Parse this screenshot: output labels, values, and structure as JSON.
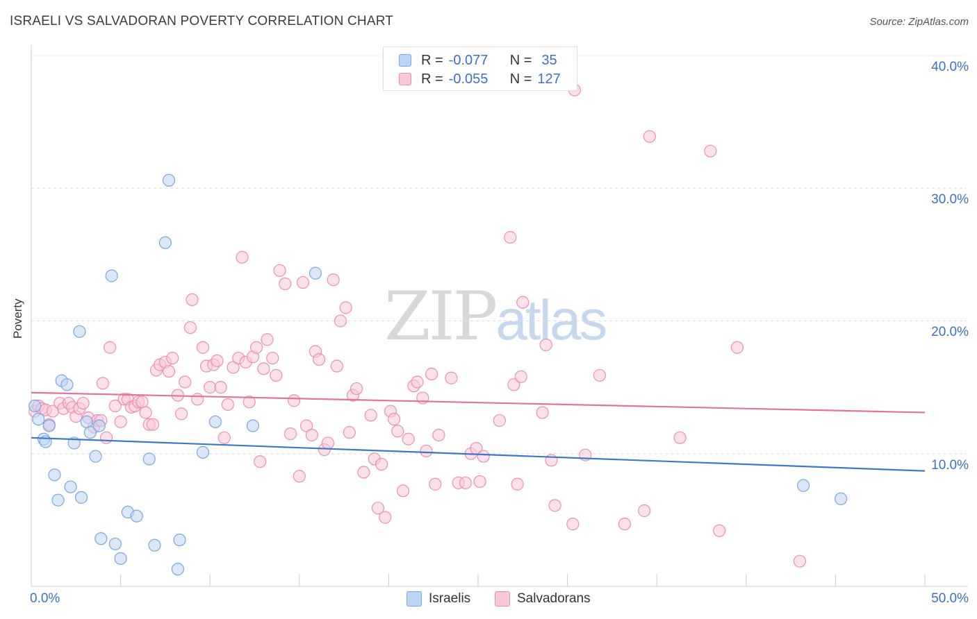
{
  "title": "ISRAELI VS SALVADORAN POVERTY CORRELATION CHART",
  "source": "Source: ZipAtlas.com",
  "watermark": {
    "part1": "ZIP",
    "part2": "atlas"
  },
  "legend_top": {
    "rows": [
      {
        "r_label": "R =",
        "r_value": "-0.077",
        "n_label": "N =",
        "n_value": "35"
      },
      {
        "r_label": "R =",
        "r_value": "-0.055",
        "n_label": "N =",
        "n_value": "127"
      }
    ]
  },
  "colors": {
    "israelis_fill": "#bcd5f5",
    "israelis_stroke": "#7aa6e0",
    "israelis_line": "#3b78c9",
    "salvadorans_fill": "#f9c8d8",
    "salvadorans_stroke": "#eb8fb0",
    "salvadorans_line": "#e5729a",
    "grid": "#dcdcdc",
    "tick_text": "#3d6fcc"
  },
  "chart_data": {
    "type": "scatter",
    "title": "ISRAELI VS SALVADORAN POVERTY CORRELATION CHART",
    "xlabel": "",
    "ylabel": "Poverty",
    "xlim": [
      0,
      50
    ],
    "ylim": [
      0,
      40
    ],
    "x_tick_labels": [
      "0.0%",
      "50.0%"
    ],
    "y_ticks": [
      10,
      20,
      30,
      40
    ],
    "y_tick_labels": [
      "10.0%",
      "20.0%",
      "30.0%",
      "40.0%"
    ],
    "grid": true,
    "legend": [
      "Israelis",
      "Salvadorans"
    ],
    "series": [
      {
        "name": "Israelis",
        "trend": {
          "start": [
            0,
            11.2
          ],
          "end": [
            50,
            8.7
          ]
        },
        "points": [
          [
            0.2,
            13.6
          ],
          [
            0.4,
            12.6
          ],
          [
            0.7,
            11.1
          ],
          [
            0.8,
            10.9
          ],
          [
            1.0,
            12.1
          ],
          [
            1.3,
            8.4
          ],
          [
            1.5,
            6.5
          ],
          [
            1.7,
            15.5
          ],
          [
            2.0,
            15.2
          ],
          [
            2.2,
            7.5
          ],
          [
            2.4,
            10.8
          ],
          [
            2.7,
            19.2
          ],
          [
            2.8,
            6.7
          ],
          [
            3.1,
            12.4
          ],
          [
            3.3,
            11.6
          ],
          [
            3.6,
            9.8
          ],
          [
            3.8,
            12.1
          ],
          [
            3.9,
            3.6
          ],
          [
            4.5,
            23.4
          ],
          [
            4.7,
            3.2
          ],
          [
            5.0,
            2.1
          ],
          [
            5.4,
            5.6
          ],
          [
            5.9,
            5.3
          ],
          [
            6.6,
            9.6
          ],
          [
            6.9,
            3.1
          ],
          [
            7.5,
            25.9
          ],
          [
            7.7,
            30.6
          ],
          [
            8.2,
            1.3
          ],
          [
            8.3,
            3.5
          ],
          [
            9.6,
            10.1
          ],
          [
            10.3,
            12.4
          ],
          [
            12.4,
            12.1
          ],
          [
            15.9,
            23.6
          ],
          [
            43.2,
            7.6
          ],
          [
            45.3,
            6.6
          ]
        ]
      },
      {
        "name": "Salvadorans",
        "trend": {
          "start": [
            0,
            14.6
          ],
          "end": [
            50,
            13.1
          ]
        },
        "points": [
          [
            0.2,
            13.2
          ],
          [
            0.4,
            13.6
          ],
          [
            0.6,
            13.4
          ],
          [
            0.8,
            13.3
          ],
          [
            1.0,
            12.2
          ],
          [
            1.2,
            13.2
          ],
          [
            1.6,
            13.8
          ],
          [
            1.8,
            13.4
          ],
          [
            2.1,
            13.8
          ],
          [
            2.3,
            13.5
          ],
          [
            2.5,
            12.8
          ],
          [
            2.7,
            13.4
          ],
          [
            2.9,
            13.8
          ],
          [
            3.2,
            12.7
          ],
          [
            3.5,
            12.0
          ],
          [
            3.7,
            12.5
          ],
          [
            3.9,
            12.5
          ],
          [
            4.0,
            15.3
          ],
          [
            4.2,
            11.2
          ],
          [
            4.4,
            18.0
          ],
          [
            4.7,
            13.6
          ],
          [
            5.0,
            12.4
          ],
          [
            5.2,
            14.1
          ],
          [
            5.4,
            14.1
          ],
          [
            5.6,
            13.5
          ],
          [
            5.8,
            13.6
          ],
          [
            6.0,
            13.9
          ],
          [
            6.2,
            13.9
          ],
          [
            6.4,
            13.1
          ],
          [
            6.6,
            12.2
          ],
          [
            6.8,
            12.2
          ],
          [
            7.0,
            16.3
          ],
          [
            7.2,
            16.7
          ],
          [
            7.5,
            16.9
          ],
          [
            7.7,
            16.2
          ],
          [
            7.9,
            17.2
          ],
          [
            8.2,
            14.4
          ],
          [
            8.4,
            13.0
          ],
          [
            8.6,
            15.4
          ],
          [
            8.9,
            19.5
          ],
          [
            9.0,
            21.6
          ],
          [
            9.3,
            14.1
          ],
          [
            9.6,
            18.0
          ],
          [
            9.8,
            16.6
          ],
          [
            10.0,
            15.0
          ],
          [
            10.2,
            16.7
          ],
          [
            10.4,
            17.0
          ],
          [
            10.6,
            15.0
          ],
          [
            10.8,
            11.2
          ],
          [
            11.0,
            13.7
          ],
          [
            11.3,
            16.5
          ],
          [
            11.6,
            17.2
          ],
          [
            11.8,
            24.8
          ],
          [
            12.0,
            16.9
          ],
          [
            12.2,
            13.9
          ],
          [
            12.4,
            17.3
          ],
          [
            12.6,
            18.0
          ],
          [
            12.8,
            9.4
          ],
          [
            13.0,
            16.4
          ],
          [
            13.2,
            18.6
          ],
          [
            13.5,
            17.2
          ],
          [
            13.7,
            15.9
          ],
          [
            13.9,
            23.8
          ],
          [
            14.2,
            22.8
          ],
          [
            14.5,
            11.5
          ],
          [
            14.7,
            14.0
          ],
          [
            15.0,
            8.3
          ],
          [
            15.2,
            22.9
          ],
          [
            15.4,
            12.1
          ],
          [
            15.7,
            11.4
          ],
          [
            15.9,
            17.7
          ],
          [
            16.1,
            17.1
          ],
          [
            16.4,
            10.3
          ],
          [
            16.6,
            10.8
          ],
          [
            16.9,
            23.1
          ],
          [
            17.1,
            16.6
          ],
          [
            17.3,
            20.0
          ],
          [
            17.6,
            21.0
          ],
          [
            17.8,
            11.6
          ],
          [
            18.0,
            14.4
          ],
          [
            18.2,
            14.9
          ],
          [
            18.6,
            8.6
          ],
          [
            19.0,
            12.9
          ],
          [
            19.2,
            9.6
          ],
          [
            19.4,
            5.9
          ],
          [
            19.6,
            9.2
          ],
          [
            19.8,
            5.2
          ],
          [
            20.1,
            13.2
          ],
          [
            20.3,
            12.6
          ],
          [
            20.5,
            11.7
          ],
          [
            20.8,
            7.2
          ],
          [
            21.1,
            11.1
          ],
          [
            21.4,
            15.1
          ],
          [
            21.6,
            15.4
          ],
          [
            21.9,
            14.2
          ],
          [
            22.1,
            10.2
          ],
          [
            22.4,
            16.0
          ],
          [
            22.6,
            7.7
          ],
          [
            22.8,
            11.4
          ],
          [
            23.5,
            15.7
          ],
          [
            23.9,
            7.8
          ],
          [
            24.3,
            7.8
          ],
          [
            24.6,
            10.0
          ],
          [
            24.9,
            10.4
          ],
          [
            25.1,
            7.9
          ],
          [
            25.3,
            9.8
          ],
          [
            26.2,
            12.5
          ],
          [
            26.8,
            26.3
          ],
          [
            27.0,
            15.2
          ],
          [
            27.2,
            7.7
          ],
          [
            27.4,
            15.8
          ],
          [
            27.5,
            21.4
          ],
          [
            28.6,
            13.1
          ],
          [
            28.8,
            18.2
          ],
          [
            29.1,
            9.5
          ],
          [
            29.3,
            6.1
          ],
          [
            30.3,
            4.7
          ],
          [
            30.4,
            37.4
          ],
          [
            31.0,
            9.9
          ],
          [
            31.8,
            15.9
          ],
          [
            33.2,
            4.7
          ],
          [
            34.3,
            5.7
          ],
          [
            34.6,
            33.9
          ],
          [
            36.3,
            11.2
          ],
          [
            38.0,
            32.8
          ],
          [
            38.5,
            4.2
          ],
          [
            39.5,
            18.0
          ],
          [
            43.0,
            1.9
          ]
        ]
      }
    ]
  }
}
